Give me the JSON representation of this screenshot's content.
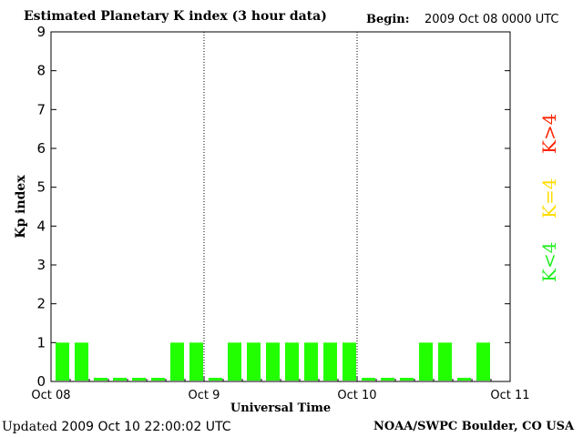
{
  "header": {
    "title": "Estimated Planetary K index (3 hour data)",
    "begin_label": "Begin:",
    "begin_value": "2009 Oct 08 0000 UTC"
  },
  "footer": {
    "updated_label": "Updated",
    "updated_value": "2009 Oct 10 22:00:02 UTC",
    "source": "NOAA/SWPC Boulder, CO USA"
  },
  "legend": [
    {
      "label": "K>4",
      "color": "#ff2200"
    },
    {
      "label": "K=4",
      "color": "#ffdd00"
    },
    {
      "label": "K<4",
      "color": "#22ee22"
    }
  ],
  "chart_data": {
    "type": "bar",
    "title": "Estimated Planetary K index (3 hour data)",
    "xlabel": "Universal Time",
    "ylabel": "Kp index",
    "ylim": [
      0,
      9
    ],
    "yticks": [
      "0",
      "1",
      "2",
      "3",
      "4",
      "5",
      "6",
      "7",
      "8",
      "9"
    ],
    "xticks": [
      "Oct 08",
      "Oct 9",
      "Oct 10",
      "Oct 11"
    ],
    "bar_color": "#22ff00",
    "grid": "vertical dotted lines at day boundaries",
    "values": [
      1,
      1,
      0,
      0,
      0,
      0,
      1,
      1,
      0,
      1,
      1,
      1,
      1,
      1,
      1,
      1,
      0,
      0,
      0,
      1,
      1,
      0,
      1
    ]
  }
}
